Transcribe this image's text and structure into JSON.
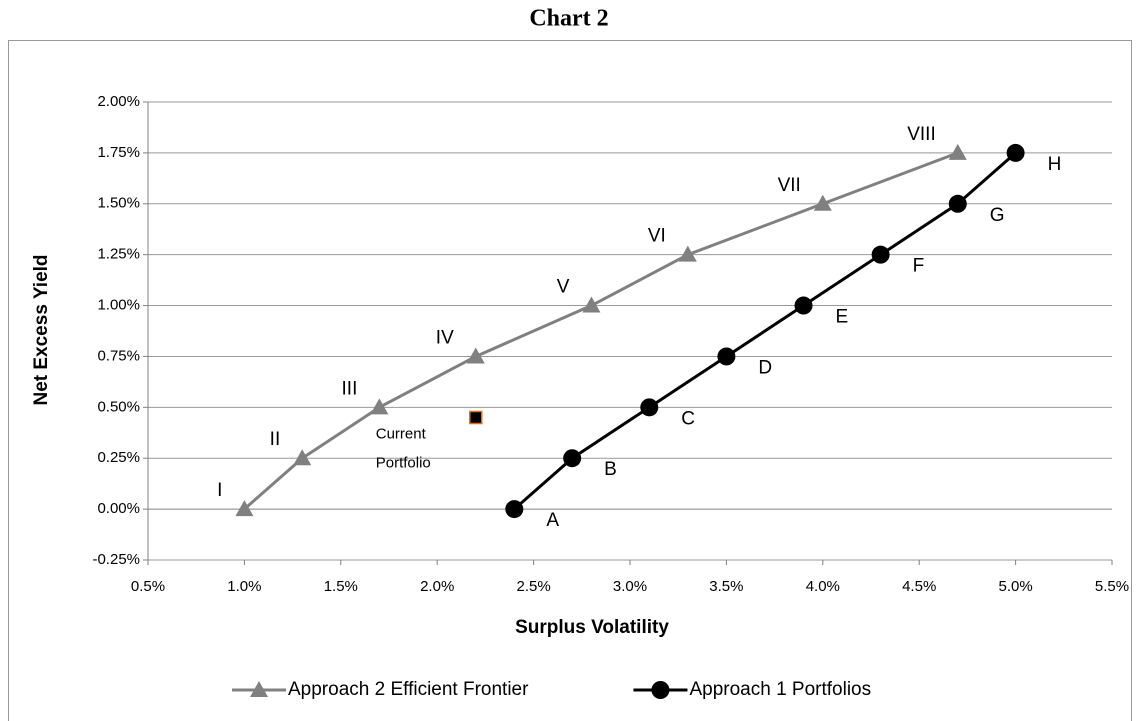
{
  "chart_data": {
    "type": "line",
    "title": "Chart 2",
    "x_label": "Surplus Volatility",
    "y_label": "Net Excess Yield",
    "xlim": [
      0.5,
      5.5
    ],
    "ylim": [
      -0.25,
      2.0
    ],
    "xticks": [
      {
        "value": 0.5,
        "label": "0.5%"
      },
      {
        "value": 1.0,
        "label": "1.0%"
      },
      {
        "value": 1.5,
        "label": "1.5%"
      },
      {
        "value": 2.0,
        "label": "2.0%"
      },
      {
        "value": 2.5,
        "label": "2.5%"
      },
      {
        "value": 3.0,
        "label": "3.0%"
      },
      {
        "value": 3.5,
        "label": "3.5%"
      },
      {
        "value": 4.0,
        "label": "4.0%"
      },
      {
        "value": 4.5,
        "label": "4.5%"
      },
      {
        "value": 5.0,
        "label": "5.0%"
      },
      {
        "value": 5.5,
        "label": "5.5%"
      }
    ],
    "yticks": [
      {
        "value": -0.25,
        "label": "-0.25%"
      },
      {
        "value": 0,
        "label": "0.00%"
      },
      {
        "value": 0.25,
        "label": "0.25%"
      },
      {
        "value": 0.5,
        "label": "0.50%"
      },
      {
        "value": 0.75,
        "label": "0.75%"
      },
      {
        "value": 1.0,
        "label": "1.00%"
      },
      {
        "value": 1.25,
        "label": "1.25%"
      },
      {
        "value": 1.5,
        "label": "1.50%"
      },
      {
        "value": 1.75,
        "label": "1.75%"
      },
      {
        "value": 2.0,
        "label": "2.00%"
      }
    ],
    "grid": true,
    "legend": "bottom",
    "series": [
      {
        "name": "Approach 2 Efficient Frontier",
        "color": "#808080",
        "marker": "triangle",
        "label_side": "upper-left",
        "x": [
          1.0,
          1.3,
          1.7,
          2.2,
          2.8,
          3.3,
          4.0,
          4.7
        ],
        "values": [
          0,
          0.25,
          0.5,
          0.75,
          1.0,
          1.25,
          1.5,
          1.75
        ],
        "labels": [
          "I",
          "II",
          "III",
          "IV",
          "V",
          "VI",
          "VII",
          "VIII"
        ]
      },
      {
        "name": "Approach 1 Portfolios",
        "color": "#000000",
        "marker": "circle",
        "label_side": "lower-right",
        "x": [
          2.4,
          2.7,
          3.1,
          3.5,
          3.9,
          4.3,
          4.7,
          5.0
        ],
        "values": [
          0,
          0.25,
          0.5,
          0.75,
          1.0,
          1.25,
          1.5,
          1.75
        ],
        "labels": [
          "A",
          "B",
          "C",
          "D",
          "E",
          "F",
          "G",
          "H"
        ]
      }
    ],
    "points": [
      {
        "label": "Current Portfolio",
        "x": 2.2,
        "y": 0.45,
        "color": "#000000",
        "edgecolor": "#e07020",
        "marker": "square"
      }
    ]
  }
}
